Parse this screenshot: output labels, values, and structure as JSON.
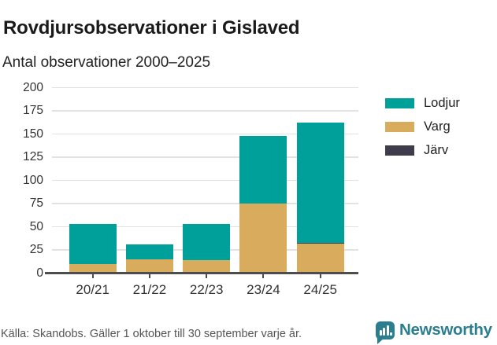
{
  "header": {
    "title": "Rovdjursobservationer i Gislaved",
    "subtitle": "Antal observationer 2000–2025"
  },
  "chart_data": {
    "type": "bar",
    "stacked": true,
    "title": "Rovdjursobservationer i Gislaved",
    "subtitle": "Antal observationer 2000–2025",
    "xlabel": "",
    "ylabel": "",
    "categories": [
      "20/21",
      "21/22",
      "22/23",
      "23/24",
      "24/25"
    ],
    "series": [
      {
        "name": "Lodjur",
        "color": "#00a09a",
        "values": [
          43,
          16,
          39,
          73,
          129
        ]
      },
      {
        "name": "Varg",
        "color": "#d9ab5c",
        "values": [
          10,
          14,
          14,
          75,
          32
        ]
      },
      {
        "name": "Järv",
        "color": "#3f3d4b",
        "values": [
          0,
          1,
          0,
          0,
          1
        ]
      }
    ],
    "totals": [
      53,
      31,
      53,
      148,
      162
    ],
    "stacks": [
      [
        {
          "series": "Varg",
          "value": 10
        },
        {
          "series": "Lodjur",
          "value": 43
        }
      ],
      [
        {
          "series": "Järv",
          "value": 1
        },
        {
          "series": "Varg",
          "value": 14
        },
        {
          "series": "Lodjur",
          "value": 16
        }
      ],
      [
        {
          "series": "Varg",
          "value": 14
        },
        {
          "series": "Lodjur",
          "value": 39
        }
      ],
      [
        {
          "series": "Varg",
          "value": 75
        },
        {
          "series": "Lodjur",
          "value": 73
        }
      ],
      [
        {
          "series": "Varg",
          "value": 32
        },
        {
          "series": "Järv",
          "value": 1
        },
        {
          "series": "Lodjur",
          "value": 129
        }
      ]
    ],
    "ylim": [
      0,
      200
    ],
    "ytick_step": 25,
    "grid": true,
    "legend_position": "right"
  },
  "legend": {
    "items": [
      {
        "label": "Lodjur",
        "color": "#00a09a"
      },
      {
        "label": "Varg",
        "color": "#d9ab5c"
      },
      {
        "label": "Järv",
        "color": "#3f3d4b"
      }
    ]
  },
  "footer": {
    "source": "Källa: Skandobs. Gäller 1 oktober till 30 september varje år.",
    "brand": "Newsworthy"
  },
  "colors": {
    "lodjur": "#00a09a",
    "varg": "#d9ab5c",
    "jarv": "#3f3d4b",
    "gridline": "#e2e2e2",
    "axis": "#4d4d4d",
    "brand_teal": "#2b7e8e"
  }
}
